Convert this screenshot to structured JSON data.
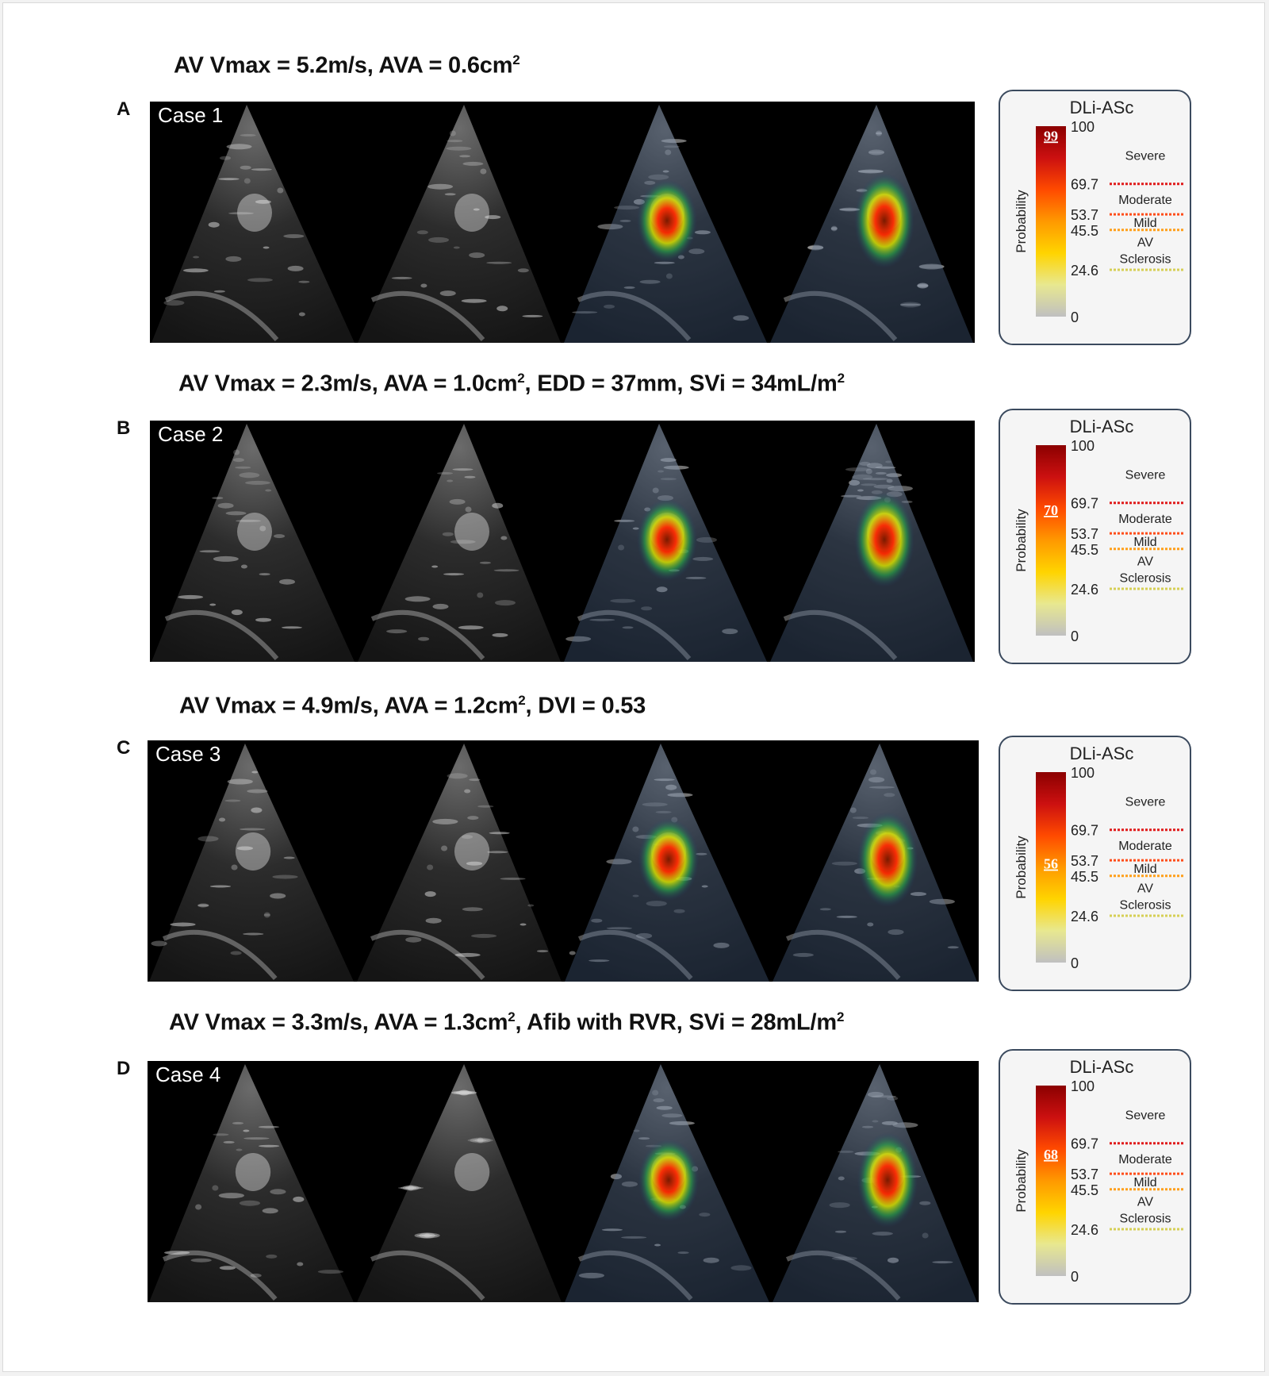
{
  "figure": {
    "panels": [
      {
        "letter": "A",
        "caption": [
          {
            "t": "AV Vmax = 5.2m/s, AVA = 0.6cm"
          },
          {
            "t": "2",
            "sup": true
          }
        ],
        "case_label": "Case 1",
        "legend": {
          "title": "DLi-ASc",
          "probability": 99
        }
      },
      {
        "letter": "B",
        "caption": [
          {
            "t": "AV Vmax = 2.3m/s, AVA = 1.0cm"
          },
          {
            "t": "2",
            "sup": true
          },
          {
            "t": ", EDD = 37mm, SVi = 34mL/m"
          },
          {
            "t": "2",
            "sup": true
          }
        ],
        "case_label": "Case 2",
        "legend": {
          "title": "DLi-ASc",
          "probability": 70
        }
      },
      {
        "letter": "C",
        "caption": [
          {
            "t": "AV Vmax = 4.9m/s, AVA = 1.2cm"
          },
          {
            "t": "2",
            "sup": true
          },
          {
            "t": ", DVI = 0.53"
          }
        ],
        "case_label": "Case 3",
        "legend": {
          "title": "DLi-ASc",
          "probability": 56
        }
      },
      {
        "letter": "D",
        "caption": [
          {
            "t": "AV Vmax = 3.3m/s, AVA = 1.3cm"
          },
          {
            "t": "2",
            "sup": true
          },
          {
            "t": ", Afib with RVR, SVi = 28mL/m"
          },
          {
            "t": "2",
            "sup": true
          }
        ],
        "case_label": "Case 4",
        "legend": {
          "title": "DLi-ASc",
          "probability": 68
        }
      }
    ],
    "scale": {
      "axis_label": "Probability",
      "max": 100,
      "min": 0,
      "thresholds": [
        {
          "value": 69.7,
          "label": "69.7",
          "color": "#e01b1b"
        },
        {
          "value": 53.7,
          "label": "53.7",
          "color": "#ff4d1a"
        },
        {
          "value": 45.5,
          "label": "45.5",
          "color": "#ff9f1a"
        },
        {
          "value": 24.6,
          "label": "24.6",
          "color": "#d6cf55"
        }
      ],
      "categories": [
        {
          "lines": [
            "Severe"
          ],
          "lower": 69.7,
          "upper": 100
        },
        {
          "lines": [
            "Moderate"
          ],
          "lower": 53.7,
          "upper": 69.7
        },
        {
          "lines": [
            "Mild"
          ],
          "lower": 45.5,
          "upper": 53.7
        },
        {
          "lines": [
            "AV",
            "Sclerosis"
          ],
          "lower": 24.6,
          "upper": 45.5
        }
      ],
      "gradient_colors": [
        "#8b0000",
        "#cc1010",
        "#ff4a00",
        "#ff9900",
        "#ffd400",
        "#e8e890",
        "#c0c0c0"
      ]
    }
  }
}
